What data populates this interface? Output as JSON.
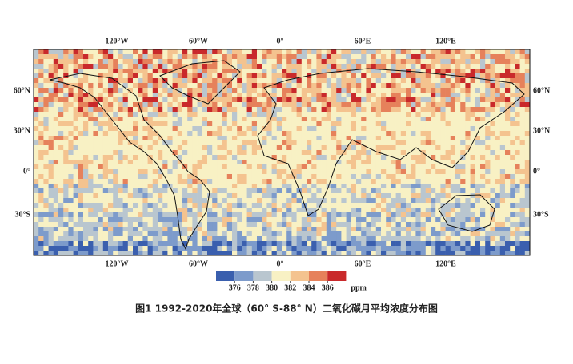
{
  "map": {
    "top_labels": [
      "120°W",
      "60°W",
      "0°",
      "60°E",
      "120°E"
    ],
    "bottom_labels": [
      "120°W",
      "60°W",
      "0°",
      "60°E",
      "120°E"
    ],
    "left_labels": [
      "60°N",
      "30°N",
      "0°",
      "30°S"
    ],
    "right_labels": [
      "60°N",
      "30°N",
      "0°",
      "30°S"
    ]
  },
  "legend": {
    "colors": [
      "#3a5fae",
      "#7d9bcb",
      "#b9c6cf",
      "#f8f1c4",
      "#f4c38f",
      "#e6815b",
      "#c9292b"
    ],
    "ticks": [
      376,
      378,
      380,
      382,
      384,
      386
    ],
    "unit": "ppm"
  },
  "caption": "图1  1992-2020年全球（60° S-88° N）二氧化碳月平均浓度分布图"
}
